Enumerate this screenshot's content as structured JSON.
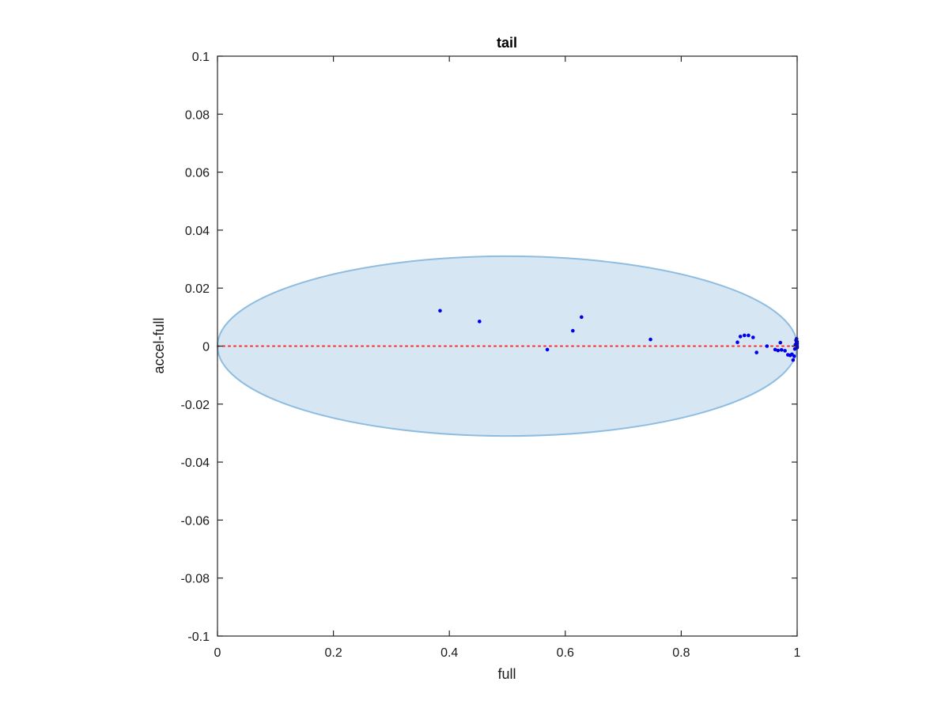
{
  "chart_data": {
    "type": "scatter",
    "title": "tail",
    "xlabel": "full",
    "ylabel": "accel-full",
    "xlim": [
      0,
      1
    ],
    "ylim": [
      -0.1,
      0.1
    ],
    "xticks": [
      0,
      0.2,
      0.4,
      0.6,
      0.8,
      1
    ],
    "xtick_labels": [
      "0",
      "0.2",
      "0.4",
      "0.6",
      "0.8",
      "1"
    ],
    "yticks": [
      -0.1,
      -0.08,
      -0.06,
      -0.04,
      -0.02,
      0,
      0.02,
      0.04,
      0.06,
      0.08,
      0.1
    ],
    "ytick_labels": [
      "-0.1",
      "-0.08",
      "-0.06",
      "-0.04",
      "-0.02",
      "0",
      "0.02",
      "0.04",
      "0.06",
      "0.08",
      "0.1"
    ],
    "grid": false,
    "ellipse": {
      "center": [
        0.5,
        0.0
      ],
      "x_radius": 0.5,
      "y_radius": 0.031,
      "fill": "#d6e6f3",
      "stroke": "#8fbde0"
    },
    "reference_line": {
      "y": 0,
      "style": "dotted",
      "color": "#ff2a2a"
    },
    "points_color": "#0000ee",
    "points": [
      [
        0.384,
        0.0122
      ],
      [
        0.452,
        0.0085
      ],
      [
        0.569,
        -0.0012
      ],
      [
        0.613,
        0.0053
      ],
      [
        0.628,
        0.01
      ],
      [
        0.747,
        0.0023
      ],
      [
        0.897,
        0.0013
      ],
      [
        0.902,
        0.0033
      ],
      [
        0.909,
        0.0037
      ],
      [
        0.916,
        0.0037
      ],
      [
        0.924,
        0.003
      ],
      [
        0.93,
        -0.0022
      ],
      [
        0.948,
        0.0
      ],
      [
        0.962,
        -0.0012
      ],
      [
        0.967,
        -0.0015
      ],
      [
        0.971,
        0.0012
      ],
      [
        0.973,
        -0.0013
      ],
      [
        0.979,
        -0.0016
      ],
      [
        0.984,
        -0.003
      ],
      [
        0.988,
        -0.0032
      ],
      [
        0.991,
        -0.0028
      ],
      [
        0.993,
        -0.0048
      ],
      [
        0.995,
        -0.0035
      ],
      [
        0.996,
        -0.001
      ],
      [
        0.997,
        0.0005
      ],
      [
        0.998,
        0.002
      ],
      [
        0.999,
        0.0025
      ],
      [
        0.999,
        0.0012
      ],
      [
        1.0,
        0.0
      ],
      [
        1.0,
        0.0008
      ],
      [
        1.0,
        -0.0005
      ],
      [
        1.0,
        0.0015
      ]
    ]
  }
}
